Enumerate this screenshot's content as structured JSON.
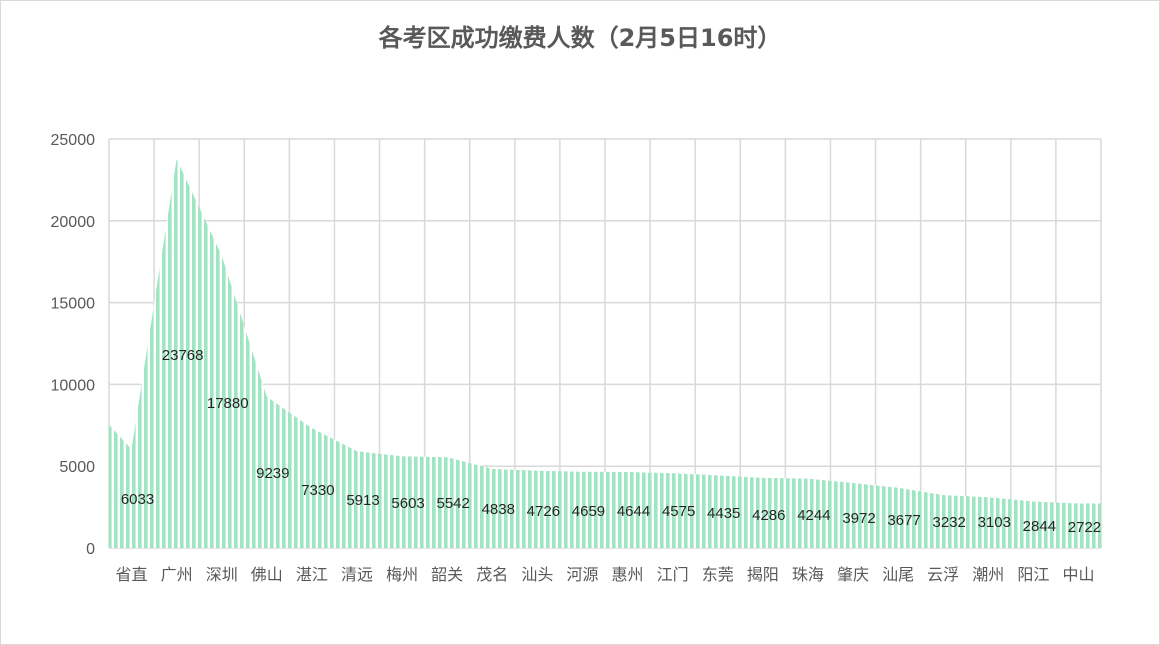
{
  "chart_data": {
    "type": "area",
    "title": "各考区成功缴费人数（2月5日16时）",
    "xlabel": "",
    "ylabel": "",
    "ylim": [
      0,
      25000
    ],
    "y_ticks": [
      0,
      5000,
      10000,
      15000,
      20000,
      25000
    ],
    "grid": true,
    "legend": "none",
    "categories": [
      "省直",
      "广州",
      "深圳",
      "佛山",
      "湛江",
      "清远",
      "梅州",
      "韶关",
      "茂名",
      "汕头",
      "河源",
      "惠州",
      "江门",
      "东莞",
      "揭阳",
      "珠海",
      "肇庆",
      "汕尾",
      "云浮",
      "潮州",
      "阳江",
      "中山"
    ],
    "values": [
      6033,
      23768,
      17880,
      9239,
      7330,
      5913,
      5603,
      5542,
      4838,
      4726,
      4659,
      4644,
      4575,
      4435,
      4286,
      4244,
      3972,
      3677,
      3232,
      3103,
      2844,
      2722
    ],
    "colors": {
      "fill": "#9ee6c2",
      "stripe": "#ffffff",
      "grid": "#d9d9d9",
      "text": "#595959"
    }
  }
}
